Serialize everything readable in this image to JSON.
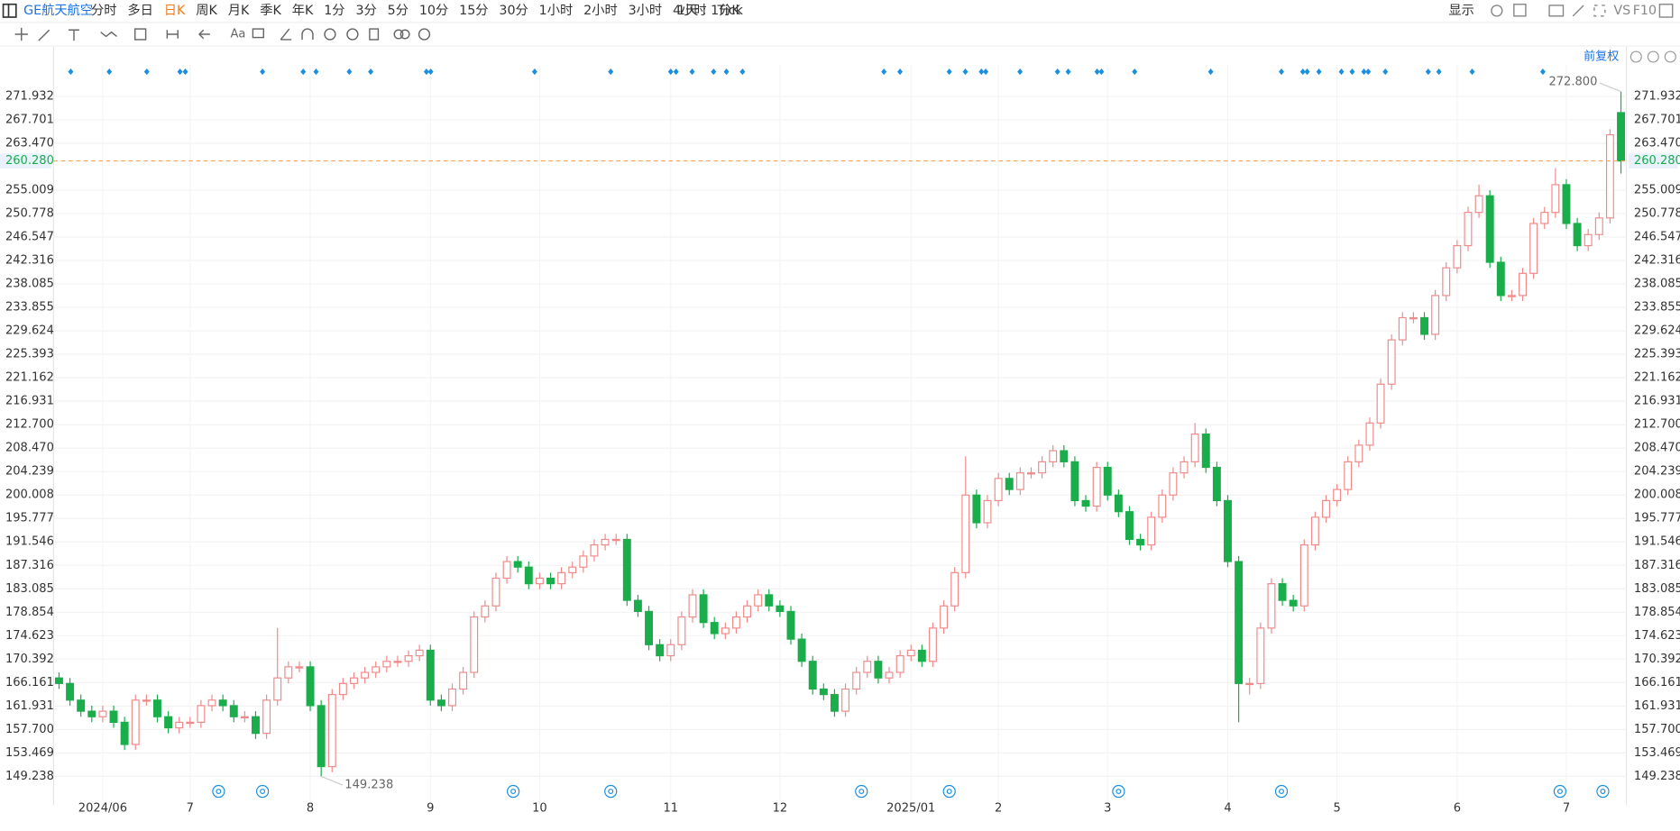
{
  "toolbar": {
    "symbol": "GE航天航空",
    "periods": [
      "分时",
      "多日",
      "日K",
      "周K",
      "月K",
      "季K",
      "年K",
      "1分",
      "3分",
      "5分",
      "10分",
      "15分",
      "30分",
      "1小时",
      "2小时",
      "3小时",
      "4小时",
      "Tick"
    ],
    "active_period_index": 2,
    "interval": "1天 : 1分K",
    "display": "显示",
    "vs": "VS",
    "f10": "F10"
  },
  "adjust": "前复权",
  "chart_data": {
    "type": "candlestick",
    "categories": [
      null,
      null,
      null,
      null,
      "2024/06",
      null,
      null,
      null,
      null,
      null,
      null,
      null,
      "7",
      null,
      null,
      null,
      null,
      null,
      null,
      null,
      null,
      null,
      null,
      "8",
      null,
      null,
      null,
      null,
      null,
      null,
      null,
      null,
      null,
      null,
      "9",
      null,
      null,
      null,
      null,
      null,
      null,
      null,
      null,
      null,
      "10",
      null,
      null,
      null,
      null,
      null,
      null,
      null,
      null,
      null,
      null,
      null,
      "11",
      null,
      null,
      null,
      null,
      null,
      null,
      null,
      null,
      null,
      "12",
      null,
      null,
      null,
      null,
      null,
      null,
      null,
      null,
      null,
      null,
      null,
      "2025/01",
      null,
      null,
      null,
      null,
      null,
      null,
      null,
      "2",
      null,
      null,
      null,
      null,
      null,
      null,
      null,
      null,
      null,
      "3",
      null,
      null,
      null,
      null,
      null,
      null,
      null,
      null,
      null,
      null,
      "4",
      null,
      null,
      null,
      null,
      null,
      null,
      null,
      null,
      null,
      "5",
      null,
      null,
      null,
      null,
      null,
      null,
      null,
      null,
      null,
      null,
      "6",
      null,
      null,
      null,
      null,
      null,
      null,
      null,
      null,
      null,
      "7",
      null,
      null,
      null,
      null,
      null
    ],
    "open": [
      167,
      166,
      163,
      161,
      160,
      161,
      159,
      155,
      163,
      163,
      160,
      158,
      159,
      159,
      162,
      163,
      162,
      160,
      160,
      157,
      163,
      167,
      169,
      169,
      162,
      151,
      164,
      166,
      167,
      168,
      169,
      170,
      170,
      171,
      172,
      163,
      162,
      165,
      168,
      178,
      180,
      185,
      188,
      187,
      184,
      185,
      184,
      186,
      187,
      189,
      191,
      192,
      192,
      181,
      179,
      173,
      171,
      173,
      178,
      182,
      177,
      175,
      176,
      178,
      180,
      182,
      180,
      179,
      174,
      170,
      165,
      164,
      161,
      165,
      168,
      170,
      167,
      168,
      171,
      172,
      170,
      176,
      180,
      186,
      200,
      195,
      199,
      203,
      201,
      204,
      204,
      206,
      208,
      206,
      199,
      198,
      205,
      200,
      197,
      192,
      191,
      196,
      200,
      204,
      206,
      211,
      205,
      199,
      188,
      166,
      166,
      176,
      184,
      181,
      180,
      191,
      196,
      199,
      201,
      206,
      209,
      213,
      220,
      228,
      232,
      232,
      229,
      236,
      241,
      245,
      251,
      254,
      242,
      236,
      236,
      240,
      249,
      251,
      256,
      249,
      245,
      247,
      250,
      269
    ],
    "high": [
      168,
      167,
      164,
      162,
      162,
      162,
      160,
      164,
      164,
      164,
      161,
      160,
      160,
      163,
      164,
      164,
      163,
      161,
      161,
      164,
      176,
      170,
      170,
      170,
      163,
      165,
      167,
      168,
      169,
      170,
      171,
      171,
      172,
      173,
      173,
      164,
      166,
      169,
      179,
      181,
      186,
      189,
      189,
      188,
      186,
      186,
      187,
      188,
      190,
      192,
      193,
      193,
      193,
      182,
      180,
      174,
      174,
      179,
      183,
      183,
      178,
      177,
      179,
      181,
      183,
      183,
      181,
      180,
      175,
      171,
      166,
      165,
      166,
      169,
      171,
      171,
      169,
      172,
      173,
      173,
      177,
      181,
      187,
      207,
      201,
      200,
      204,
      204,
      205,
      205,
      207,
      209,
      209,
      207,
      200,
      206,
      206,
      201,
      198,
      193,
      197,
      201,
      205,
      207,
      213,
      212,
      206,
      200,
      189,
      167,
      177,
      185,
      185,
      182,
      192,
      197,
      200,
      202,
      207,
      210,
      214,
      221,
      229,
      233,
      233,
      233,
      237,
      242,
      246,
      252,
      256,
      255,
      243,
      237,
      241,
      250,
      252,
      259,
      257,
      250,
      248,
      251,
      266,
      272.8
    ],
    "low": [
      165,
      162,
      160,
      159,
      159,
      158,
      154,
      154,
      162,
      159,
      157,
      157,
      158,
      158,
      161,
      161,
      159,
      159,
      156,
      156,
      162,
      166,
      168,
      161,
      149.238,
      150,
      163,
      165,
      166,
      167,
      168,
      169,
      169,
      170,
      162,
      161,
      161,
      164,
      167,
      177,
      179,
      184,
      186,
      183,
      183,
      183,
      183,
      185,
      186,
      188,
      190,
      191,
      180,
      178,
      172,
      170,
      170,
      172,
      177,
      176,
      174,
      174,
      175,
      177,
      179,
      179,
      178,
      173,
      169,
      164,
      163,
      160,
      160,
      164,
      167,
      166,
      166,
      167,
      170,
      169,
      169,
      175,
      179,
      185,
      194,
      194,
      198,
      200,
      200,
      203,
      203,
      205,
      205,
      198,
      197,
      197,
      199,
      196,
      191,
      190,
      190,
      195,
      199,
      203,
      205,
      204,
      198,
      187,
      159,
      164,
      165,
      175,
      180,
      179,
      179,
      190,
      195,
      198,
      200,
      205,
      208,
      212,
      219,
      227,
      231,
      228,
      228,
      235,
      240,
      244,
      250,
      241,
      235,
      235,
      235,
      239,
      248,
      250,
      248,
      244,
      244,
      246,
      249,
      258
    ],
    "close": [
      166,
      163,
      161,
      160,
      161,
      159,
      155,
      163,
      163,
      160,
      158,
      159,
      159,
      162,
      163,
      162,
      160,
      160,
      157,
      163,
      167,
      169,
      169,
      162,
      151,
      164,
      166,
      167,
      168,
      169,
      170,
      170,
      171,
      172,
      163,
      162,
      165,
      168,
      178,
      180,
      185,
      188,
      187,
      184,
      185,
      184,
      186,
      187,
      189,
      191,
      192,
      192,
      181,
      179,
      173,
      171,
      173,
      178,
      182,
      177,
      175,
      176,
      178,
      180,
      182,
      180,
      179,
      174,
      170,
      165,
      164,
      161,
      165,
      168,
      170,
      167,
      168,
      171,
      172,
      170,
      176,
      180,
      186,
      200,
      195,
      199,
      203,
      201,
      204,
      204,
      206,
      208,
      206,
      199,
      198,
      205,
      200,
      197,
      192,
      191,
      196,
      200,
      204,
      206,
      211,
      205,
      199,
      188,
      166,
      166,
      176,
      184,
      181,
      180,
      191,
      196,
      199,
      201,
      206,
      209,
      213,
      220,
      228,
      232,
      232,
      229,
      236,
      241,
      245,
      251,
      254,
      242,
      236,
      236,
      240,
      249,
      251,
      256,
      249,
      245,
      247,
      250,
      265,
      260.28
    ],
    "up_color": "#f08a8a",
    "down_color": "#1aad4b",
    "ylim": [
      144.021,
      277.729
    ],
    "yticks": [
      149.238,
      153.469,
      {
        "value": 157.7,
        "label": "157.700"
      },
      161.931,
      166.161,
      170.392,
      174.623,
      178.854,
      183.085,
      187.316,
      191.546,
      195.777,
      200.008,
      204.239,
      {
        "value": 208.47,
        "label": "208.470"
      },
      {
        "value": 212.7,
        "label": "212.700"
      },
      216.931,
      221.162,
      225.393,
      229.624,
      233.855,
      238.085,
      242.316,
      246.547,
      250.778,
      255.009,
      {
        "value": 263.47,
        "label": "263.470"
      },
      267.701,
      271.932
    ],
    "grid": true,
    "last_price": {
      "value": 260.28,
      "label": "260.280"
    },
    "high_annotation": {
      "value": 272.8,
      "label": "272.800"
    },
    "low_annotation": 149.238
  }
}
